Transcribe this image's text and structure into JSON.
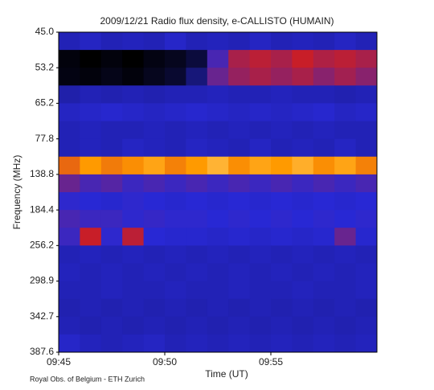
{
  "chart_data": {
    "type": "heatmap",
    "title": "2009/12/21  Radio flux density, e-CALLISTO (HUMAIN)",
    "xlabel": "Time (UT)",
    "ylabel": "Frequency (MHz)",
    "credit": "Royal Obs. of Belgium - ETH Zurich",
    "y_categories": [
      "45.0",
      "53.2",
      "65.2",
      "77.8",
      "138.8",
      "184.4",
      "256.2",
      "298.9",
      "342.7",
      "387.6"
    ],
    "xlim": [
      "09:45",
      "10:00"
    ],
    "xticks": [
      "09:45",
      "09:50",
      "09:55"
    ],
    "colorscale": [
      [
        0,
        "#000000"
      ],
      [
        35,
        "#2828d4"
      ],
      [
        60,
        "#c81e28"
      ],
      [
        80,
        "#ff9a00"
      ],
      [
        100,
        "#ffffd0"
      ]
    ],
    "z": [
      [
        30,
        32,
        30,
        31,
        30,
        33,
        30,
        31,
        30,
        32,
        30,
        31,
        30,
        32,
        30
      ],
      [
        2,
        0,
        2,
        0,
        3,
        5,
        10,
        40,
        55,
        58,
        55,
        60,
        56,
        58,
        55
      ],
      [
        3,
        2,
        4,
        2,
        5,
        8,
        20,
        45,
        52,
        55,
        52,
        55,
        50,
        54,
        50
      ],
      [
        28,
        30,
        29,
        30,
        29,
        30,
        30,
        31,
        30,
        30,
        31,
        30,
        30,
        29,
        30
      ],
      [
        32,
        33,
        34,
        33,
        32,
        33,
        34,
        33,
        32,
        33,
        32,
        33,
        34,
        32,
        33
      ],
      [
        30,
        31,
        30,
        30,
        31,
        30,
        31,
        30,
        31,
        30,
        31,
        30,
        31,
        30,
        30
      ],
      [
        30,
        31,
        30,
        32,
        31,
        30,
        32,
        31,
        30,
        32,
        30,
        31,
        30,
        32,
        30
      ],
      [
        72,
        80,
        75,
        78,
        82,
        76,
        80,
        85,
        78,
        82,
        80,
        84,
        78,
        82,
        76
      ],
      [
        45,
        40,
        42,
        38,
        40,
        38,
        40,
        38,
        40,
        38,
        40,
        38,
        40,
        38,
        40
      ],
      [
        36,
        35,
        34,
        36,
        35,
        34,
        35,
        34,
        35,
        34,
        35,
        34,
        35,
        34,
        35
      ],
      [
        40,
        38,
        38,
        36,
        37,
        36,
        36,
        35,
        36,
        35,
        36,
        35,
        36,
        35,
        36
      ],
      [
        38,
        60,
        36,
        58,
        35,
        34,
        34,
        33,
        34,
        33,
        34,
        33,
        34,
        45,
        34
      ],
      [
        30,
        31,
        30,
        31,
        30,
        31,
        30,
        31,
        30,
        31,
        30,
        31,
        30,
        31,
        30
      ],
      [
        31,
        30,
        31,
        30,
        31,
        30,
        31,
        30,
        31,
        30,
        31,
        30,
        31,
        30,
        31
      ],
      [
        30,
        30,
        31,
        30,
        30,
        31,
        30,
        30,
        31,
        30,
        30,
        31,
        30,
        30,
        31
      ],
      [
        29,
        30,
        29,
        30,
        29,
        30,
        29,
        30,
        29,
        30,
        29,
        30,
        29,
        30,
        29
      ],
      [
        30,
        29,
        30,
        29,
        30,
        29,
        30,
        29,
        30,
        29,
        30,
        29,
        30,
        29,
        30
      ],
      [
        33,
        31,
        30,
        31,
        32,
        30,
        31,
        30,
        31,
        30,
        31,
        30,
        31,
        30,
        31
      ]
    ]
  }
}
